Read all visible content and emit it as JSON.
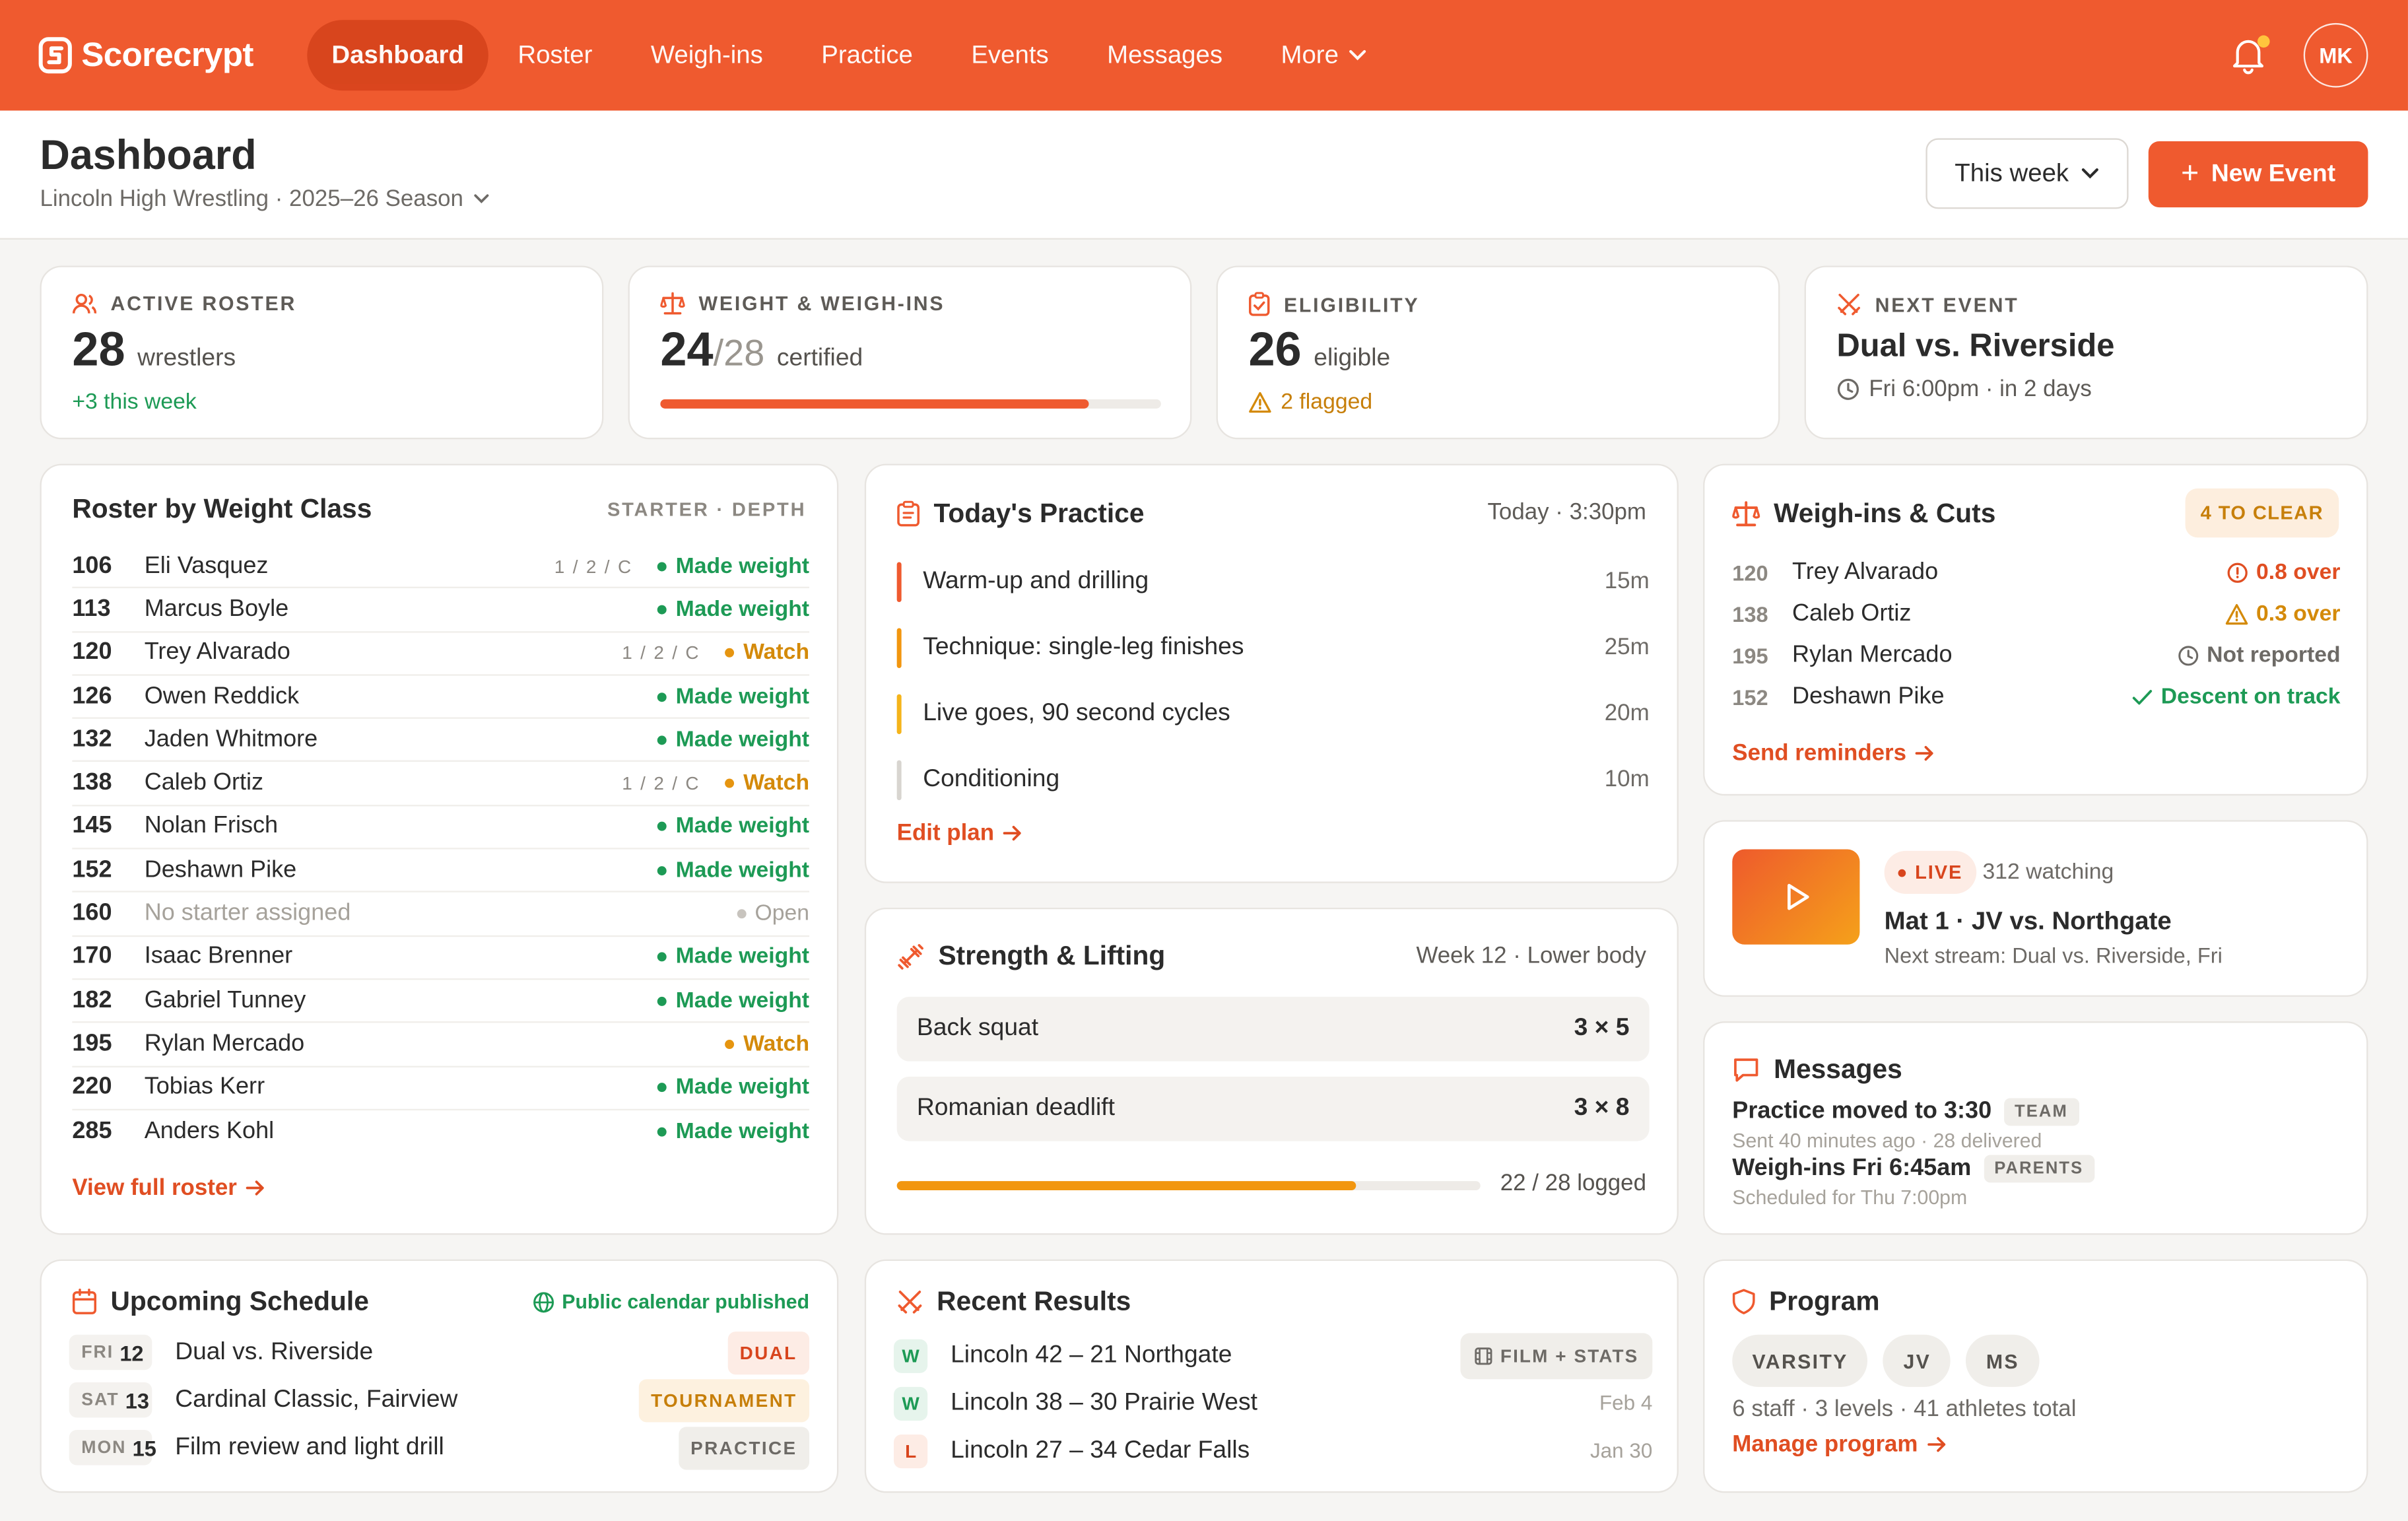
{
  "app": {
    "name": "Scorecrypt",
    "avatar_initials": "MK",
    "notification_dot_color": "#ffc53d"
  },
  "nav": {
    "items": [
      {
        "label": "Dashboard",
        "active": true
      },
      {
        "label": "Roster"
      },
      {
        "label": "Weigh-ins"
      },
      {
        "label": "Practice"
      },
      {
        "label": "Events"
      },
      {
        "label": "Messages"
      },
      {
        "label": "More"
      }
    ]
  },
  "header": {
    "title": "Dashboard",
    "subtitle": "Lincoln High Wrestling · 2025–26 Season",
    "range_label": "This week",
    "new_event_label": "New Event"
  },
  "kpis": {
    "roster": {
      "label": "ACTIVE ROSTER",
      "value": "28",
      "unit": "wrestlers",
      "delta": "+3 this week"
    },
    "weight": {
      "label": "WEIGHT & WEIGH-INS",
      "value": "24",
      "denominator": "/28",
      "unit": "certified",
      "progress": 0.857
    },
    "eligibility": {
      "label": "ELIGIBILITY",
      "value": "26",
      "unit": "eligible",
      "flagged": "2 flagged"
    },
    "next_event": {
      "label": "NEXT EVENT",
      "title": "Dual vs. Riverside",
      "when": "Fri 6:00pm · in 2 days"
    }
  },
  "roster": {
    "title": "Roster by Weight Class",
    "header": "STARTER · DEPTH",
    "rows": [
      {
        "weight": "106",
        "name": "Eli Vasquez",
        "depth": "1 / 2 / C",
        "status": "Made weight",
        "kind": "made"
      },
      {
        "weight": "113",
        "name": "Marcus Boyle",
        "depth": "",
        "status": "Made weight",
        "kind": "made"
      },
      {
        "weight": "120",
        "name": "Trey Alvarado",
        "depth": "1 / 2 / C",
        "status": "Watch",
        "kind": "watch"
      },
      {
        "weight": "126",
        "name": "Owen Reddick",
        "depth": "",
        "status": "Made weight",
        "kind": "made"
      },
      {
        "weight": "132",
        "name": "Jaden Whitmore",
        "depth": "",
        "status": "Made weight",
        "kind": "made"
      },
      {
        "weight": "138",
        "name": "Caleb Ortiz",
        "depth": "1 / 2 / C",
        "status": "Watch",
        "kind": "watch"
      },
      {
        "weight": "145",
        "name": "Nolan Frisch",
        "depth": "",
        "status": "Made weight",
        "kind": "made"
      },
      {
        "weight": "152",
        "name": "Deshawn Pike",
        "depth": "",
        "status": "Made weight",
        "kind": "made"
      },
      {
        "weight": "160",
        "name": "No starter assigned",
        "depth": "",
        "status": "Open",
        "kind": "open"
      },
      {
        "weight": "170",
        "name": "Isaac Brenner",
        "depth": "",
        "status": "Made weight",
        "kind": "made"
      },
      {
        "weight": "182",
        "name": "Gabriel Tunney",
        "depth": "",
        "status": "Made weight",
        "kind": "made"
      },
      {
        "weight": "195",
        "name": "Rylan Mercado",
        "depth": "",
        "status": "Watch",
        "kind": "watch"
      },
      {
        "weight": "220",
        "name": "Tobias Kerr",
        "depth": "",
        "status": "Made weight",
        "kind": "made"
      },
      {
        "weight": "285",
        "name": "Anders Kohl",
        "depth": "",
        "status": "Made weight",
        "kind": "made"
      }
    ],
    "view_link": "View full roster"
  },
  "practice": {
    "title": "Today's Practice",
    "when": "Today · 3:30pm",
    "items": [
      {
        "name": "Warm-up and drilling",
        "minutes": "15m",
        "color": "#ef5a2f"
      },
      {
        "name": "Technique: single-leg finishes",
        "minutes": "25m",
        "color": "#f2960f"
      },
      {
        "name": "Live goes, 90 second cycles",
        "minutes": "20m",
        "color": "#f5b41a"
      },
      {
        "name": "Conditioning",
        "minutes": "10m",
        "color": "#d8d5d0"
      }
    ],
    "edit_link": "Edit plan"
  },
  "strength": {
    "title": "Strength & Lifting",
    "meta": "Week 12 · Lower body",
    "lifts": [
      {
        "name": "Back squat",
        "sets": "3 × 5"
      },
      {
        "name": "Romanian deadlift",
        "sets": "3 × 8"
      }
    ],
    "logged": "22 / 28 logged",
    "progress": 0.786
  },
  "weighins": {
    "title": "Weigh-ins & Cuts",
    "badge": "4 TO CLEAR",
    "rows": [
      {
        "weight": "120",
        "name": "Trey Alvarado",
        "status": "0.8 over",
        "kind": "over"
      },
      {
        "weight": "138",
        "name": "Caleb Ortiz",
        "status": "0.3 over",
        "kind": "warn"
      },
      {
        "weight": "195",
        "name": "Rylan Mercado",
        "status": "Not reported",
        "kind": "nr"
      },
      {
        "weight": "152",
        "name": "Deshawn Pike",
        "status": "Descent on track",
        "kind": "ok"
      }
    ],
    "reminder_link": "Send reminders"
  },
  "stream": {
    "live_label": "LIVE",
    "watching": "312 watching",
    "title": "Mat 1 · JV vs. Northgate",
    "next": "Next stream: Dual vs. Riverside, Fri"
  },
  "messages": {
    "title": "Messages",
    "items": [
      {
        "title": "Practice moved to 3:30",
        "tag": "TEAM",
        "sub": "Sent 40 minutes ago · 28 delivered"
      },
      {
        "title": "Weigh-ins Fri 6:45am",
        "tag": "PARENTS",
        "sub": "Scheduled for Thu 7:00pm"
      }
    ]
  },
  "schedule": {
    "title": "Upcoming Schedule",
    "published": "Public calendar published",
    "items": [
      {
        "dow": "FRI",
        "day": "12",
        "name": "Dual vs. Riverside",
        "tag": "DUAL",
        "kind": "dual"
      },
      {
        "dow": "SAT",
        "day": "13",
        "name": "Cardinal Classic, Fairview",
        "tag": "TOURNAMENT",
        "kind": "tourn"
      },
      {
        "dow": "MON",
        "day": "15",
        "name": "Film review and light drill",
        "tag": "PRACTICE",
        "kind": "prac"
      }
    ]
  },
  "results": {
    "title": "Recent Results",
    "film_label": "FILM + STATS",
    "items": [
      {
        "outcome": "W",
        "text": "Lincoln 42 – 21 Northgate",
        "date": ""
      },
      {
        "outcome": "W",
        "text": "Lincoln 38 – 30 Prairie West",
        "date": "Feb 4"
      },
      {
        "outcome": "L",
        "text": "Lincoln 27 – 34 Cedar Falls",
        "date": "Jan 30"
      }
    ]
  },
  "program": {
    "title": "Program",
    "levels": [
      "VARSITY",
      "JV",
      "MS"
    ],
    "summary": "6 staff · 3 levels · 41 athletes total",
    "manage_link": "Manage program"
  },
  "colors": {
    "brand": "#ef5a2f",
    "green": "#1d9a55",
    "amber": "#d48a0a"
  }
}
